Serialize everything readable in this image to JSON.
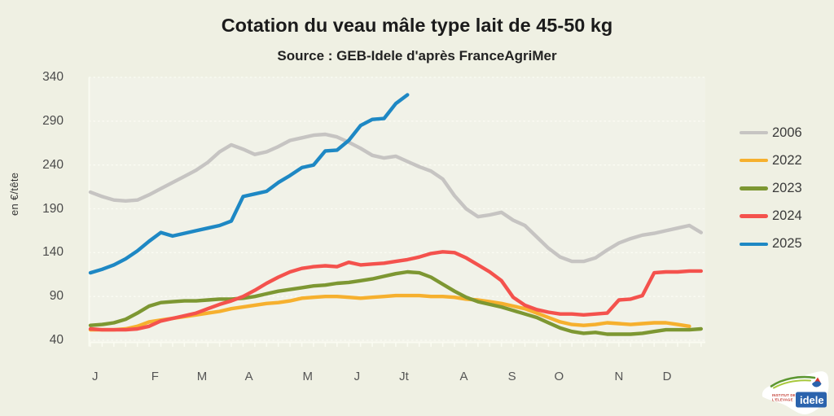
{
  "title": "Cotation du veau mâle type lait de 45-50 kg",
  "subtitle": "Source : GEB-Idele d'après FranceAgriMer",
  "chart_data": {
    "type": "line",
    "title": "Cotation du veau mâle type lait de 45-50 kg",
    "subtitle": "Source : GEB-Idele d'après FranceAgriMer",
    "ylabel": "en €/tête",
    "ylim": [
      40,
      340
    ],
    "grid": "horizontal-dashed",
    "legend_position": "right",
    "y_axis": {
      "unit_label": "en €/tête",
      "ticks": [
        340,
        290,
        240,
        190,
        140,
        90,
        40
      ]
    },
    "x_axis": {
      "unit": "week_of_year",
      "weeks_total": 53,
      "labels": [
        {
          "label": "J",
          "week": 1.4
        },
        {
          "label": "F",
          "week": 6.5
        },
        {
          "label": "M",
          "week": 10.5
        },
        {
          "label": "A",
          "week": 14.5
        },
        {
          "label": "M",
          "week": 19.5
        },
        {
          "label": "J",
          "week": 23.7
        },
        {
          "label": "Jt",
          "week": 27.7
        },
        {
          "label": "A",
          "week": 32.8
        },
        {
          "label": "S",
          "week": 36.9
        },
        {
          "label": "O",
          "week": 40.9
        },
        {
          "label": "N",
          "week": 46.0
        },
        {
          "label": "D",
          "week": 50.1
        }
      ]
    },
    "series": [
      {
        "name": "2006",
        "color": "#c6c4c2",
        "start_week": 1,
        "values": [
          209,
          204,
          200,
          199,
          200,
          206,
          213,
          220,
          227,
          234,
          243,
          255,
          263,
          258,
          252,
          255,
          261,
          268,
          271,
          274,
          275,
          272,
          266,
          259,
          251,
          248,
          250,
          244,
          238,
          233,
          224,
          205,
          190,
          181,
          183,
          186,
          177,
          171,
          158,
          145,
          135,
          130,
          130,
          134,
          143,
          151,
          156,
          160,
          162,
          165,
          168,
          171,
          163
        ]
      },
      {
        "name": "2022",
        "color": "#f6b02e",
        "start_week": 1,
        "values": [
          52,
          52,
          52,
          53,
          56,
          61,
          63,
          65,
          67,
          69,
          71,
          73,
          76,
          78,
          80,
          82,
          83,
          85,
          88,
          89,
          90,
          90,
          89,
          88,
          89,
          90,
          91,
          91,
          91,
          90,
          90,
          89,
          87,
          86,
          84,
          82,
          79,
          76,
          71,
          66,
          61,
          58,
          57,
          58,
          60,
          59,
          58,
          59,
          60,
          60,
          58,
          56
        ]
      },
      {
        "name": "2023",
        "color": "#7d9732",
        "start_week": 1,
        "values": [
          57,
          58,
          60,
          64,
          71,
          79,
          83,
          84,
          85,
          85,
          86,
          87,
          87,
          88,
          90,
          93,
          96,
          98,
          100,
          102,
          103,
          105,
          106,
          108,
          110,
          113,
          116,
          118,
          117,
          112,
          104,
          96,
          89,
          84,
          81,
          78,
          74,
          70,
          66,
          60,
          54,
          50,
          48,
          49,
          47,
          47,
          47,
          48,
          50,
          52,
          52,
          52,
          53
        ]
      },
      {
        "name": "2024",
        "color": "#f4524d",
        "start_week": 1,
        "values": [
          53,
          52,
          52,
          52,
          53,
          56,
          62,
          65,
          68,
          71,
          76,
          81,
          85,
          90,
          97,
          105,
          112,
          118,
          122,
          124,
          125,
          124,
          129,
          126,
          127,
          128,
          130,
          132,
          135,
          139,
          141,
          140,
          134,
          126,
          118,
          108,
          89,
          80,
          75,
          72,
          70,
          70,
          69,
          70,
          71,
          86,
          87,
          91,
          117,
          118,
          118,
          119,
          119
        ]
      },
      {
        "name": "2025",
        "color": "#1e88c4",
        "start_week": 1,
        "values": [
          117,
          121,
          126,
          133,
          142,
          153,
          163,
          159,
          162,
          165,
          168,
          171,
          176,
          204,
          207,
          210,
          220,
          228,
          237,
          240,
          256,
          257,
          268,
          285,
          292,
          293,
          310,
          320
        ]
      }
    ]
  },
  "logo": {
    "org_line1": "INSTITUT DE",
    "org_line2": "L'ELEVAGE",
    "brand": "idele"
  },
  "colors": {
    "page_bg": "#eff0e3",
    "plot_bg": "#f1f2e8",
    "grid": "#fbfcf3",
    "logo_blue": "#2b63ad",
    "logo_green": "#5d9732",
    "logo_light_green": "#a8c83c",
    "logo_red": "#d6382e"
  }
}
